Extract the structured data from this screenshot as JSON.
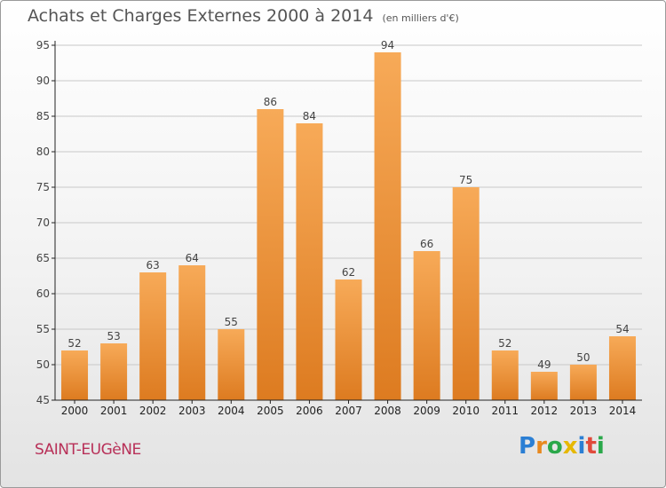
{
  "title": "Achats et Charges Externes 2000 à 2014",
  "unit": "(en milliers d'€)",
  "commune": "SAINT-EUGèNE",
  "brand": {
    "text": "Proxiti",
    "colors": [
      "#2b7fd4",
      "#e8891f",
      "#2aa84a",
      "#e6b800",
      "#2b7fd4",
      "#e04a3b",
      "#2aa84a"
    ]
  },
  "colors": {
    "bar_top": "#f7aa58",
    "bar_bottom": "#dd7b20",
    "label": "#444444",
    "axis": "#222222",
    "grid": "#c8c8c8"
  },
  "chart_data": {
    "type": "bar",
    "categories": [
      "2000",
      "2001",
      "2002",
      "2003",
      "2004",
      "2005",
      "2006",
      "2007",
      "2008",
      "2009",
      "2010",
      "2011",
      "2012",
      "2013",
      "2014"
    ],
    "values": [
      52,
      53,
      63,
      64,
      55,
      86,
      84,
      62,
      94,
      66,
      75,
      52,
      49,
      50,
      54
    ],
    "ylim": [
      45,
      95
    ],
    "yticks": [
      45,
      50,
      55,
      60,
      65,
      70,
      75,
      80,
      85,
      90,
      95
    ],
    "grid": true,
    "data_labels": true
  }
}
